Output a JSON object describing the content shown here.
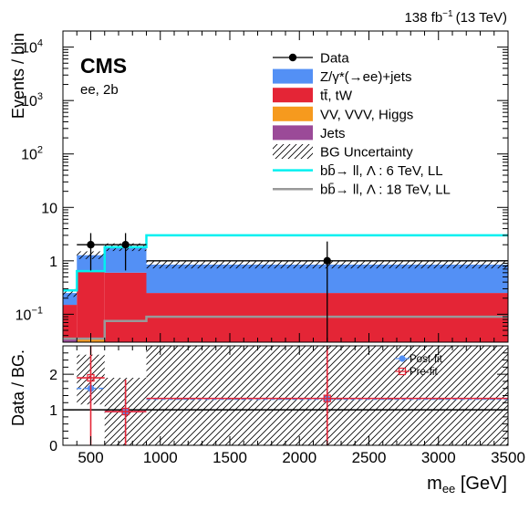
{
  "header": {
    "lumi_value": "138 fb",
    "lumi_exp": "−1",
    "lumi_energy": "(13 TeV)"
  },
  "labels": {
    "experiment": "CMS",
    "channel": "ee, 2b"
  },
  "chart_data": [
    {
      "type": "bar",
      "name": "upper",
      "ylabel": "Events / bin",
      "xlim": [
        300,
        3500
      ],
      "ylim": [
        0.03,
        20000
      ],
      "yscale": "log",
      "bin_edges": [
        300,
        400,
        600,
        900,
        3500
      ],
      "stacked": [
        {
          "name": "Jets",
          "color": "#9b4a98",
          "values": [
            0.035,
            0.0,
            0.0,
            0.0
          ]
        },
        {
          "name": "VV, VVV, Higgs",
          "color": "#f69a1e",
          "values": [
            0.0,
            0.035,
            0.0,
            0.0
          ]
        },
        {
          "name": "tt̄, tW",
          "color": "#e42536",
          "values": [
            0.115,
            0.6,
            0.6,
            0.25
          ]
        },
        {
          "name": "Z/γ*(→ee)+jets",
          "color": "#5390f5",
          "values": [
            0.1,
            0.64,
            1.2,
            0.6
          ]
        }
      ],
      "data": {
        "name": "Data",
        "points": [
          {
            "x": 500,
            "y": 2.0,
            "ylo": 0.66,
            "yhi": 3.3,
            "xlo": 400,
            "xhi": 600
          },
          {
            "x": 750,
            "y": 2.0,
            "ylo": 0.66,
            "yhi": 3.3,
            "xlo": 600,
            "xhi": 900
          },
          {
            "x": 2200,
            "y": 1.0,
            "ylo": 0.03,
            "yhi": 2.3,
            "xlo": 900,
            "xhi": 3500
          }
        ]
      },
      "signals": [
        {
          "name": "bb̄→ ll,   Λ : 6 TeV, LL",
          "color": "#00f0f0",
          "values": [
            0.28,
            0.64,
            1.8,
            3.0
          ]
        },
        {
          "name": "bb̄→ ll,   Λ : 18 TeV, LL",
          "color": "#999999",
          "values": [
            0.035,
            0.035,
            0.075,
            0.09
          ]
        }
      ],
      "uncertainty": {
        "name": "BG Uncertainty"
      },
      "legend": {
        "placement": "top-right",
        "entries": [
          "Data",
          "Z/γ*(→ee)+jets",
          "tt̄, tW",
          "VV, VVV, Higgs",
          "Jets",
          "BG Uncertainty",
          "bb̄→ ll,   Λ : 6 TeV, LL",
          "bb̄→ ll,   Λ : 18 TeV, LL"
        ]
      },
      "yticks": [
        {
          "v": 0.1,
          "base": "10",
          "exp": "−1"
        },
        {
          "v": 1,
          "label": "1"
        },
        {
          "v": 10,
          "label": "10"
        },
        {
          "v": 100,
          "base": "10",
          "exp": "2"
        },
        {
          "v": 1000,
          "base": "10",
          "exp": "3"
        },
        {
          "v": 10000,
          "base": "10",
          "exp": "4"
        }
      ]
    },
    {
      "type": "scatter",
      "name": "ratio",
      "ylabel": "Data / BG.",
      "xlabel_main": "m",
      "xlabel_sub": "ee",
      "xlabel_unit": " [GeV]",
      "xlim": [
        300,
        3500
      ],
      "ylim": [
        0,
        2.8
      ],
      "xticks": [
        500,
        1000,
        1500,
        2000,
        2500,
        3000,
        3500
      ],
      "yticks": [
        0,
        1,
        2
      ],
      "unity_line": 1,
      "uncertainty_bands": [
        {
          "x0": 400,
          "x1": 600,
          "lo": 1.15,
          "hi": 2.55
        },
        {
          "x0": 600,
          "x1": 900,
          "lo": 0.0,
          "hi": 1.9
        },
        {
          "x0": 900,
          "x1": 3500,
          "lo": 0.0,
          "hi": 2.8
        }
      ],
      "series": [
        {
          "name": "Post-fit",
          "color": "#5390f5",
          "points": [
            {
              "x": 500,
              "y": 1.6,
              "xlo": 400,
              "xhi": 600,
              "ylo": 1.2,
              "yhi": 2.0
            },
            {
              "x": 750,
              "y": 0.95,
              "xlo": 600,
              "xhi": 900,
              "ylo": 0.3,
              "yhi": 1.8
            },
            {
              "x": 2200,
              "y": 1.3,
              "xlo": 900,
              "xhi": 3500,
              "ylo": 0.1,
              "yhi": 2.8
            }
          ]
        },
        {
          "name": "Pre-fit",
          "color": "#e42536",
          "points": [
            {
              "x": 500,
              "y": 1.9,
              "xlo": 400,
              "xhi": 600,
              "ylo": 0.0,
              "yhi": 2.8
            },
            {
              "x": 750,
              "y": 0.95,
              "xlo": 600,
              "xhi": 900,
              "ylo": 0.0,
              "yhi": 1.85
            },
            {
              "x": 2200,
              "y": 1.32,
              "xlo": 900,
              "xhi": 3500,
              "ylo": 0.0,
              "yhi": 2.8
            }
          ]
        }
      ],
      "legend": {
        "placement": "top-right",
        "entries": [
          "Post-fit",
          "Pre-fit"
        ]
      }
    }
  ]
}
